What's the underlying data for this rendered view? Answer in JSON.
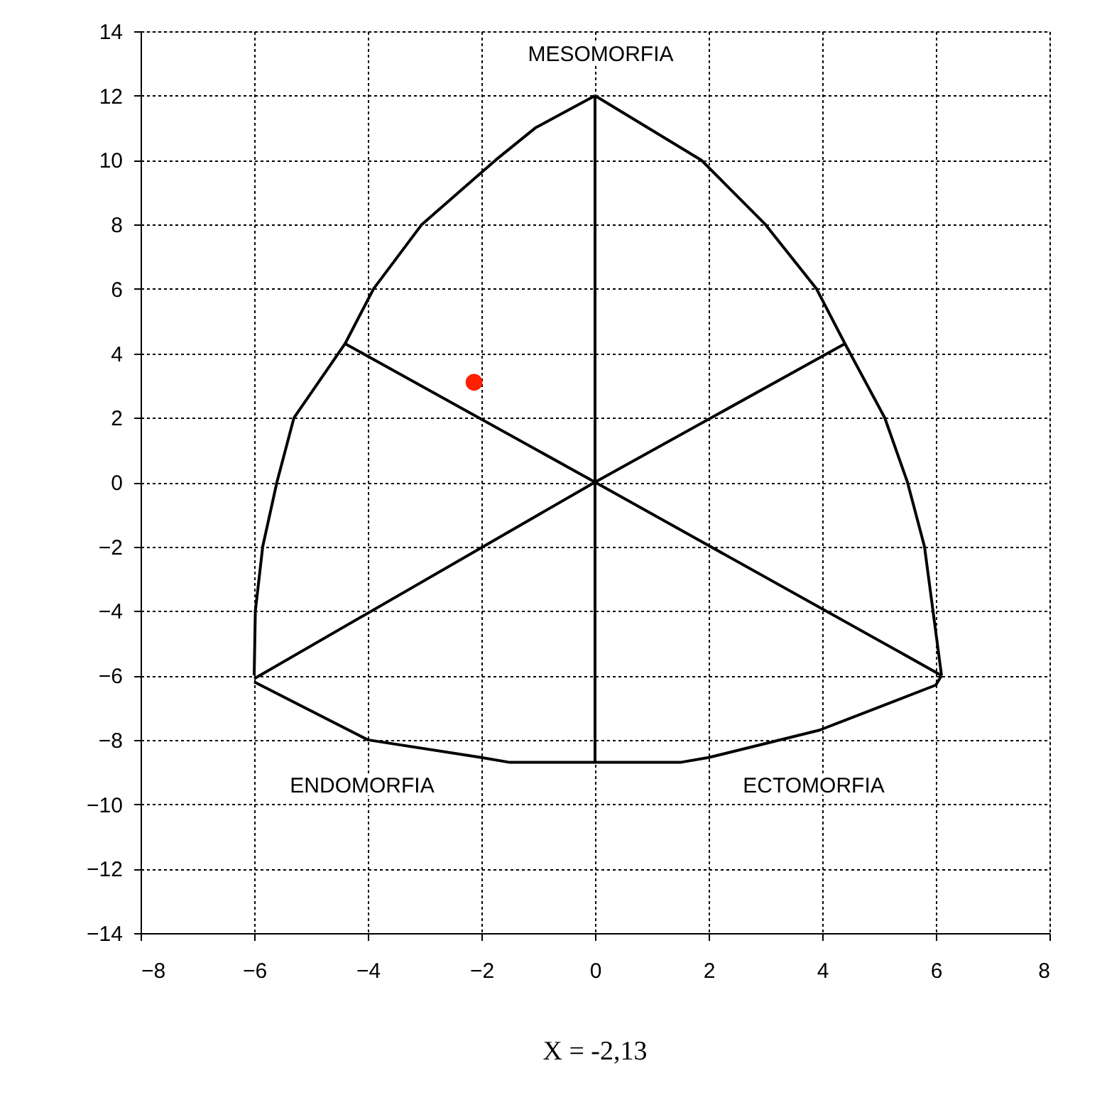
{
  "chart_data": {
    "type": "scatter",
    "xlim": [
      -8,
      8
    ],
    "ylim": [
      -14,
      14
    ],
    "xticks": [
      -8,
      -6,
      -4,
      -2,
      0,
      2,
      4,
      6,
      8
    ],
    "yticks": [
      -14,
      -12,
      -10,
      -8,
      -6,
      -4,
      -2,
      0,
      2,
      4,
      6,
      8,
      10,
      12,
      14
    ],
    "grid": true,
    "series": [
      {
        "type": "line",
        "color": "#000000",
        "marker": "none",
        "x": [
          -6,
          -5.98,
          -5.85,
          -5.6,
          -5.3,
          -4.4,
          -3.9,
          -3.05,
          -1.75,
          -1.05,
          0
        ],
        "values": [
          -6,
          -4,
          -2,
          0,
          2,
          4.3,
          6,
          8,
          10,
          11,
          12
        ]
      },
      {
        "type": "line",
        "color": "#000000",
        "marker": "none",
        "x": [
          0,
          1.87,
          3.0,
          3.9,
          4.4,
          5.1,
          5.5,
          5.8,
          5.95,
          6.1
        ],
        "values": [
          12,
          10,
          8,
          6,
          4.3,
          2,
          0,
          -2,
          -4,
          -6
        ]
      },
      {
        "type": "line",
        "color": "#000000",
        "marker": "none",
        "x": [
          -6,
          -4,
          -2,
          -1.5,
          1.5,
          2,
          3.95,
          6,
          6.1
        ],
        "values": [
          -6.2,
          -8,
          -8.55,
          -8.7,
          -8.7,
          -8.55,
          -7.7,
          -6.3,
          -6
        ]
      },
      {
        "type": "line",
        "color": "#000000",
        "marker": "none",
        "x": [
          -4.4,
          0,
          6.1
        ],
        "values": [
          4.3,
          0,
          -6
        ]
      },
      {
        "type": "line",
        "color": "#000000",
        "marker": "none",
        "x": [
          4.4,
          0,
          -6
        ],
        "values": [
          4.3,
          0,
          -6.1
        ]
      },
      {
        "type": "line",
        "color": "#000000",
        "marker": "none",
        "x": [
          0,
          0
        ],
        "values": [
          12,
          -8.7
        ]
      },
      {
        "type": "scatter",
        "color": "#ff2000",
        "marker": "circle",
        "x": [
          -2.13
        ],
        "values": [
          3.1
        ]
      }
    ],
    "annotations": [
      "MESOMORFIA",
      "ENDOMORFIA",
      "ECTOMORFIA",
      "X = -2,13"
    ]
  }
}
